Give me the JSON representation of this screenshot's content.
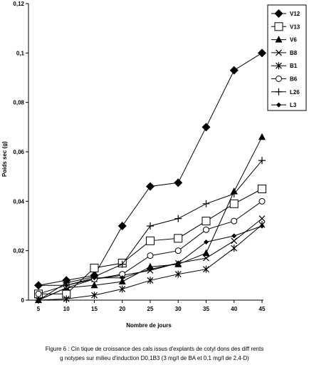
{
  "chart_data": {
    "type": "line",
    "title": "",
    "xlabel": "Nombre de jours",
    "ylabel": "Poids sec (g)",
    "x": [
      5,
      10,
      15,
      20,
      25,
      30,
      35,
      40,
      45
    ],
    "xticks": [
      "5",
      "10",
      "15",
      "20",
      "25",
      "30",
      "35",
      "40",
      "45"
    ],
    "ylim": [
      0,
      0.12
    ],
    "yticks": [
      "0",
      "0,02",
      "0,04",
      "0,06",
      "0,08",
      "0,1",
      "0,12"
    ],
    "grid": false,
    "legend_position": "top-right",
    "series": [
      {
        "name": "V12",
        "marker": "filled-diamond",
        "values": [
          0.006,
          0.008,
          0.01,
          0.03,
          0.046,
          0.0475,
          0.07,
          0.093,
          0.1
        ]
      },
      {
        "name": "V13",
        "marker": "open-square",
        "values": [
          0.0025,
          0.0025,
          0.013,
          0.015,
          0.024,
          0.025,
          0.032,
          0.039,
          0.045
        ]
      },
      {
        "name": "V6",
        "marker": "filled-triangle",
        "values": [
          0,
          0.005,
          0.006,
          0.0075,
          0.0135,
          0.0145,
          0.019,
          0.044,
          0.066
        ]
      },
      {
        "name": "B8",
        "marker": "x",
        "values": [
          0,
          0.005,
          0.0085,
          0.01,
          0.012,
          0.015,
          0.017,
          0.024,
          0.033
        ]
      },
      {
        "name": "B1",
        "marker": "star",
        "values": [
          0,
          0.0005,
          0.002,
          0.0045,
          0.008,
          0.0105,
          0.0125,
          0.021,
          0.0305
        ]
      },
      {
        "name": "B6",
        "marker": "open-circle",
        "values": [
          0.0025,
          0.006,
          0.0085,
          0.0105,
          0.018,
          0.02,
          0.0285,
          0.032,
          0.04
        ]
      },
      {
        "name": "L26",
        "marker": "plus",
        "values": [
          0,
          0.007,
          0.0095,
          0.0145,
          0.03,
          0.033,
          0.039,
          0.043,
          0.0565
        ]
      },
      {
        "name": "L3",
        "marker": "small-filled-diamond",
        "values": [
          0.006,
          0.006,
          0.009,
          0.009,
          0.0125,
          0.015,
          0.0235,
          0.026,
          0.03
        ]
      }
    ]
  },
  "caption": {
    "line1": "Figure 6 : Cin  tique de croissance des cals issus d'explants de cotyl  dons des diff  rents",
    "line2": "g  notypes sur milieu d'induction D0,1B3 (3 mg/l de BA et 0,1 mg/l de 2,4-D)"
  }
}
